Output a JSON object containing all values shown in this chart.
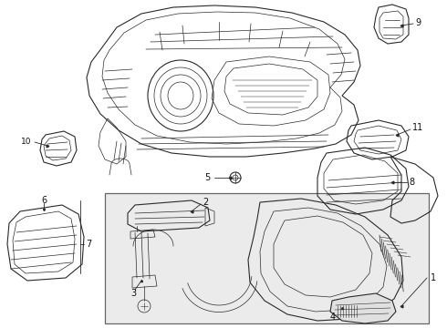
{
  "bg_color": "#ffffff",
  "line_color": "#2a2a2a",
  "box_bg": "#eeeeee",
  "box_border": "#888888",
  "label_fs": 7.0,
  "label_color": "#111111",
  "lw_main": 0.8,
  "lw_thin": 0.5,
  "lw_label": 0.6
}
